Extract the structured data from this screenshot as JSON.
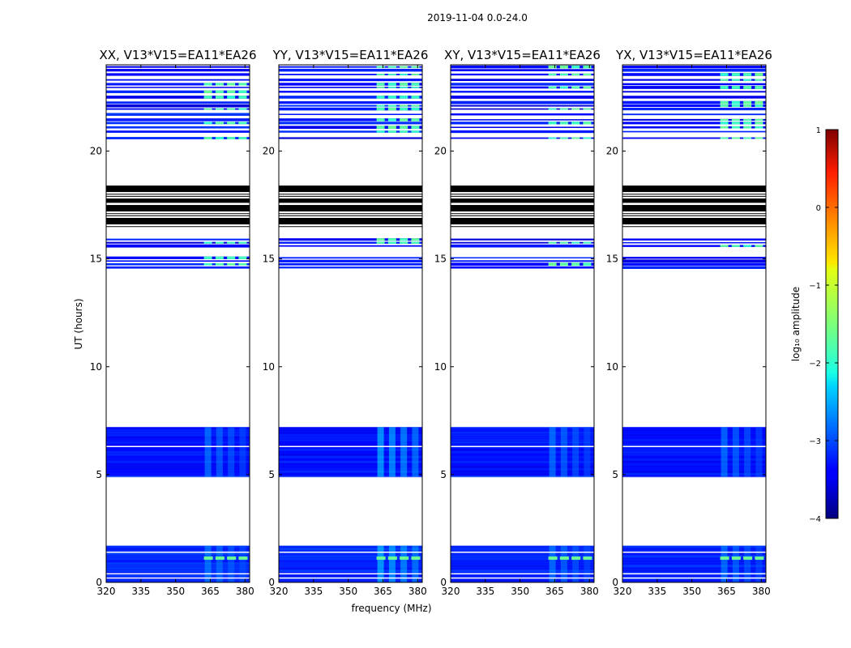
{
  "chart_data": {
    "type": "heatmap",
    "suptitle": "2019-11-04 0.0-24.0",
    "xlabel": "frequency (MHz)",
    "ylabel": "UT (hours)",
    "xlim": [
      320,
      382
    ],
    "ylim": [
      0,
      24
    ],
    "xticks": [
      320,
      335,
      350,
      365,
      380
    ],
    "yticks": [
      0,
      5,
      10,
      15,
      20
    ],
    "colorbar": {
      "label": "log₁₀ amplitude",
      "range": [
        -4,
        1
      ],
      "ticks": [
        1,
        0,
        -1,
        -2,
        -3,
        -4
      ],
      "colormap": "jet"
    },
    "panels": [
      {
        "title": "XX, V13*V15=EA11*EA26",
        "show_ylabel": true
      },
      {
        "title": "YY, V13*V15=EA11*EA26",
        "show_ylabel": false
      },
      {
        "title": "XY, V13*V15=EA11*EA26",
        "show_ylabel": false
      },
      {
        "title": "YX, V13*V15=EA11*EA26",
        "show_ylabel": false
      }
    ],
    "data_blocks_ut": [
      {
        "start": 0.0,
        "end": 1.7,
        "level": -3.2
      },
      {
        "start": 4.9,
        "end": 7.2,
        "level": -3.3
      }
    ],
    "gap_lines_ut": [
      0.2,
      0.4,
      1.4,
      6.3
    ],
    "striped_region_ut": {
      "start": 14.5,
      "end": 24.0
    },
    "flagged_black_bands_ut": [
      [
        18.1,
        18.4
      ],
      [
        17.6,
        17.8
      ],
      [
        17.2,
        17.5
      ],
      [
        16.6,
        16.9
      ]
    ],
    "rfi_channels_mhz": [
      364,
      369,
      374,
      379
    ]
  }
}
